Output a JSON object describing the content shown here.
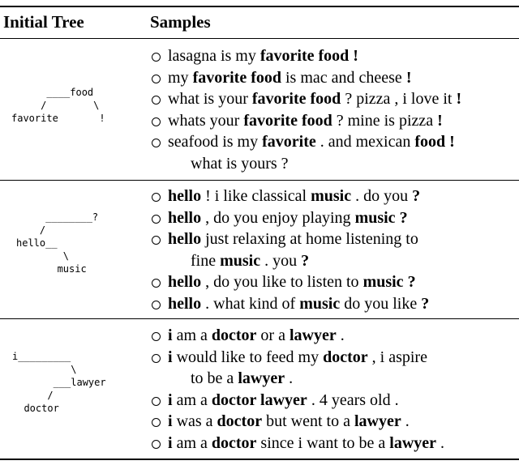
{
  "header": {
    "tree_label": "Initial Tree",
    "samples_label": "Samples"
  },
  "rows": [
    {
      "tree": "      ____food\n     /        \\\nfavorite       !",
      "samples": [
        {
          "lines": [
            [
              {
                "t": "lasagna is my ",
                "b": false
              },
              {
                "t": "favorite food !",
                "b": true
              }
            ]
          ]
        },
        {
          "lines": [
            [
              {
                "t": "my ",
                "b": false
              },
              {
                "t": "favorite food",
                "b": true
              },
              {
                "t": " is mac and cheese ",
                "b": false
              },
              {
                "t": "!",
                "b": true
              }
            ]
          ]
        },
        {
          "lines": [
            [
              {
                "t": "what is your ",
                "b": false
              },
              {
                "t": "favorite food",
                "b": true
              },
              {
                "t": " ? pizza , i love it ",
                "b": false
              },
              {
                "t": "!",
                "b": true
              }
            ]
          ]
        },
        {
          "lines": [
            [
              {
                "t": "whats your ",
                "b": false
              },
              {
                "t": "favorite food",
                "b": true
              },
              {
                "t": " ? mine is pizza ",
                "b": false
              },
              {
                "t": "!",
                "b": true
              }
            ]
          ]
        },
        {
          "lines": [
            [
              {
                "t": "seafood is my ",
                "b": false
              },
              {
                "t": "favorite",
                "b": true
              },
              {
                "t": " . and mexican ",
                "b": false
              },
              {
                "t": "food !",
                "b": true
              }
            ],
            [
              {
                "t": "what is yours ?",
                "b": false
              }
            ]
          ]
        }
      ]
    },
    {
      "tree": "     ________?\n    /\nhello__\n        \\\n       music",
      "samples": [
        {
          "lines": [
            [
              {
                "t": "hello",
                "b": true
              },
              {
                "t": " ! i like classical ",
                "b": false
              },
              {
                "t": "music",
                "b": true
              },
              {
                "t": " . do you ",
                "b": false
              },
              {
                "t": "?",
                "b": true
              }
            ]
          ]
        },
        {
          "lines": [
            [
              {
                "t": "hello",
                "b": true
              },
              {
                "t": " , do you enjoy playing ",
                "b": false
              },
              {
                "t": "music ?",
                "b": true
              }
            ]
          ]
        },
        {
          "lines": [
            [
              {
                "t": "hello",
                "b": true
              },
              {
                "t": " just relaxing at home listening to",
                "b": false
              }
            ],
            [
              {
                "t": "fine ",
                "b": false
              },
              {
                "t": "music",
                "b": true
              },
              {
                "t": " . you ",
                "b": false
              },
              {
                "t": "?",
                "b": true
              }
            ]
          ]
        },
        {
          "lines": [
            [
              {
                "t": "hello",
                "b": true
              },
              {
                "t": " , do you like to listen to ",
                "b": false
              },
              {
                "t": "music ?",
                "b": true
              }
            ]
          ]
        },
        {
          "lines": [
            [
              {
                "t": "hello",
                "b": true
              },
              {
                "t": " . what kind of ",
                "b": false
              },
              {
                "t": "music",
                "b": true
              },
              {
                "t": " do you like ",
                "b": false
              },
              {
                "t": "?",
                "b": true
              }
            ]
          ]
        }
      ]
    },
    {
      "tree": "i_________\n          \\\n       ___lawyer\n      /\n  doctor",
      "samples": [
        {
          "lines": [
            [
              {
                "t": "i",
                "b": true
              },
              {
                "t": " am a ",
                "b": false
              },
              {
                "t": "doctor",
                "b": true
              },
              {
                "t": " or a ",
                "b": false
              },
              {
                "t": "lawyer",
                "b": true
              },
              {
                "t": " .",
                "b": false
              }
            ]
          ]
        },
        {
          "lines": [
            [
              {
                "t": "i",
                "b": true
              },
              {
                "t": " would like to feed my ",
                "b": false
              },
              {
                "t": "doctor",
                "b": true
              },
              {
                "t": " , i aspire",
                "b": false
              }
            ],
            [
              {
                "t": "to be a ",
                "b": false
              },
              {
                "t": "lawyer",
                "b": true
              },
              {
                "t": " .",
                "b": false
              }
            ]
          ]
        },
        {
          "lines": [
            [
              {
                "t": "i",
                "b": true
              },
              {
                "t": " am a ",
                "b": false
              },
              {
                "t": "doctor lawyer",
                "b": true
              },
              {
                "t": " . 4 years old .",
                "b": false
              }
            ]
          ]
        },
        {
          "lines": [
            [
              {
                "t": "i",
                "b": true
              },
              {
                "t": " was a ",
                "b": false
              },
              {
                "t": "doctor",
                "b": true
              },
              {
                "t": " but went to a ",
                "b": false
              },
              {
                "t": "lawyer",
                "b": true
              },
              {
                "t": " .",
                "b": false
              }
            ]
          ]
        },
        {
          "lines": [
            [
              {
                "t": "i",
                "b": true
              },
              {
                "t": " am a ",
                "b": false
              },
              {
                "t": "doctor",
                "b": true
              },
              {
                "t": " since i want to be a ",
                "b": false
              },
              {
                "t": "lawyer",
                "b": true
              },
              {
                "t": " .",
                "b": false
              }
            ]
          ]
        }
      ]
    }
  ]
}
